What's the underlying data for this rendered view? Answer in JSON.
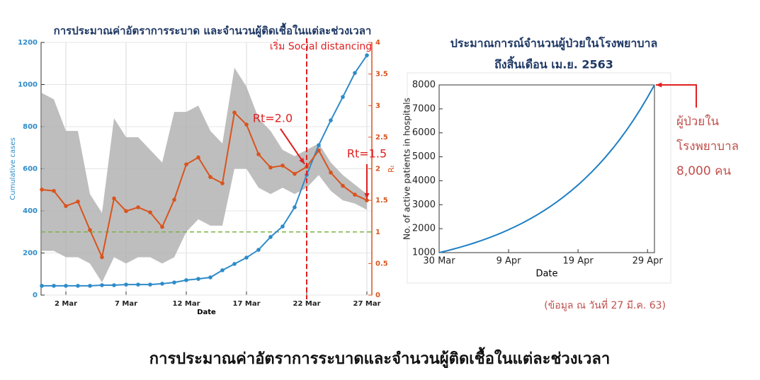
{
  "chart_data": [
    {
      "type": "line",
      "title": "การประมาณค่าอัตราการระบาด และจำนวนผู้ติดเชื้อในแต่ละช่วงเวลา",
      "x_label": "Date",
      "y_label": "Cumulative cases",
      "y2_label": "Rₜ",
      "categories": [
        null,
        null,
        "2 Mar",
        null,
        null,
        null,
        null,
        "7 Mar",
        null,
        null,
        null,
        null,
        "12 Mar",
        null,
        null,
        null,
        null,
        "17 Mar",
        null,
        null,
        null,
        null,
        "22 Mar",
        null,
        null,
        null,
        null,
        "27 Mar"
      ],
      "ylim": [
        0,
        1200
      ],
      "yticks": [
        0,
        200,
        400,
        600,
        800,
        1000,
        1200
      ],
      "y2lim": [
        0,
        4
      ],
      "y2ticks": [
        0,
        0.5,
        1,
        1.5,
        2,
        2.5,
        3,
        3.5,
        4
      ],
      "grid": true,
      "markers": true,
      "series": [
        {
          "color": "#2e8bc9",
          "values": [
            44,
            44,
            44,
            44,
            44,
            47,
            47,
            50,
            50,
            50,
            54,
            60,
            71,
            77,
            84,
            118,
            148,
            178,
            215,
            276,
            326,
            417,
            571,
            712,
            830,
            941,
            1055,
            1139
          ]
        },
        {
          "color": "#d9541e",
          "axis": "y2",
          "values": [
            1.67,
            1.65,
            1.41,
            1.48,
            1.03,
            0.6,
            1.53,
            1.33,
            1.39,
            1.31,
            1.08,
            1.51,
            2.07,
            2.18,
            1.87,
            1.77,
            2.89,
            2.7,
            2.23,
            2.02,
            2.05,
            1.92,
            2.03,
            2.29,
            1.94,
            1.73,
            1.59,
            1.5
          ]
        }
      ],
      "band": {
        "color": "#b3b3b3",
        "axis": "y2",
        "lower": [
          0.7,
          0.7,
          0.6,
          0.6,
          0.5,
          0.2,
          0.6,
          0.5,
          0.6,
          0.6,
          0.5,
          0.6,
          1.0,
          1.2,
          1.1,
          1.1,
          2.0,
          2.0,
          1.7,
          1.6,
          1.7,
          1.6,
          1.7,
          1.9,
          1.65,
          1.5,
          1.45,
          1.35
        ],
        "upper": [
          3.2,
          3.1,
          2.6,
          2.6,
          1.6,
          1.3,
          2.8,
          2.5,
          2.5,
          2.3,
          2.1,
          2.9,
          2.9,
          3.0,
          2.6,
          2.4,
          3.6,
          3.3,
          2.8,
          2.6,
          2.3,
          2.2,
          2.3,
          2.4,
          2.1,
          1.9,
          1.75,
          1.6
        ]
      },
      "threshold": {
        "value": 1,
        "axis": "y2",
        "color": "#7cb342"
      },
      "annotations": [
        {
          "text": "เริ่ม Social distancing",
          "index": 22
        },
        {
          "text": "Rt=2.0",
          "index": 22
        },
        {
          "text": "Rt=1.5",
          "index": 27
        }
      ]
    },
    {
      "type": "line",
      "title": [
        "ประมาณการณ์จำนวนผู้ป่วยในโรงพยาบาล",
        "ถึงสิ้นเดือน เม.ย. 2563"
      ],
      "x_label": "Date",
      "y_label": "No. of active patients in hospitals",
      "categories": [
        "30 Mar",
        null,
        null,
        null,
        null,
        null,
        null,
        null,
        null,
        null,
        "9 Apr",
        null,
        null,
        null,
        null,
        null,
        null,
        null,
        null,
        null,
        "19 Apr",
        null,
        null,
        null,
        null,
        null,
        null,
        null,
        null,
        null,
        "29 Apr",
        null
      ],
      "ylim": [
        1000,
        8000
      ],
      "yticks": [
        1000,
        2000,
        3000,
        4000,
        5000,
        6000,
        7000,
        8000
      ],
      "grid": false,
      "markers": false,
      "series": [
        {
          "color": "#1f7fc4",
          "values": [
            1000,
            1069,
            1144,
            1223,
            1308,
            1399,
            1496,
            1600,
            1711,
            1829,
            1956,
            2092,
            2237,
            2392,
            2558,
            2736,
            2926,
            3129,
            3346,
            3578,
            3826,
            4092,
            4376,
            4679,
            5004,
            5351,
            5722,
            6119,
            6544,
            6998,
            7483,
            8000
          ]
        }
      ],
      "annotations": [
        {
          "text": [
            "ผู้ป่วยใน",
            "โรงพยาบาล",
            "8,000 คน"
          ],
          "index": 31
        }
      ]
    }
  ],
  "source_note": "(ข้อมูล ณ วันที่ 27 มี.ค. 63)",
  "caption": "การประมาณค่าอัตราการระบาดและจำนวนผู้ติดเชื้อในแต่ละช่วงเวลา"
}
